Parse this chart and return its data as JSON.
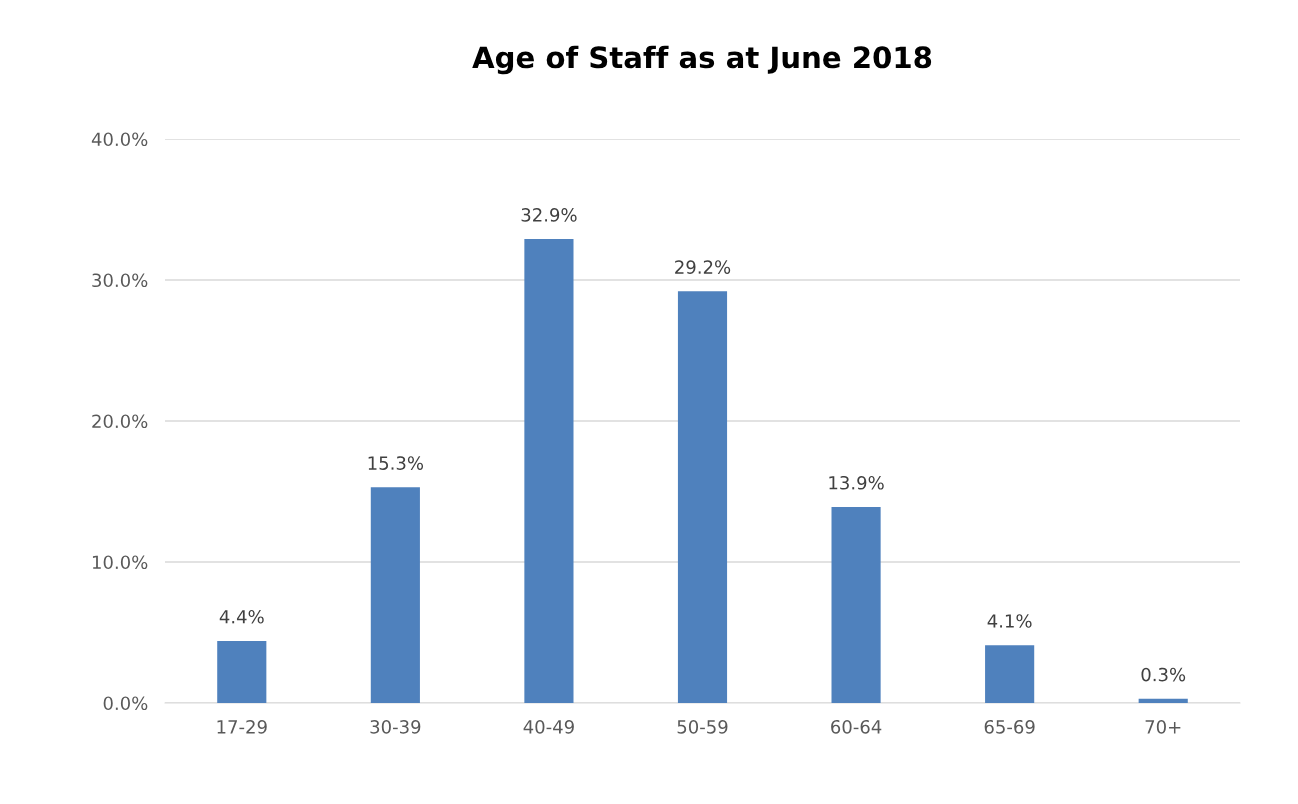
{
  "chart_data": {
    "type": "bar",
    "title": "Age of Staff as at June 2018",
    "categories": [
      "17-29",
      "30-39",
      "40-49",
      "50-59",
      "60-64",
      "65-69",
      "70+"
    ],
    "values": [
      4.4,
      15.3,
      32.9,
      29.2,
      13.9,
      4.1,
      0.3
    ],
    "value_labels": [
      "4.4%",
      "15.3%",
      "32.9%",
      "29.2%",
      "13.9%",
      "4.1%",
      "0.3%"
    ],
    "color": "#4f81bd",
    "ylim": [
      0,
      40
    ],
    "yticks": [
      {
        "value": 0,
        "label": "0.0%"
      },
      {
        "value": 10,
        "label": "10.0%"
      },
      {
        "value": 20,
        "label": "20.0%"
      },
      {
        "value": 30,
        "label": "30.0%"
      },
      {
        "value": 40,
        "label": "40.0%"
      }
    ],
    "grid": "y",
    "legend": false
  }
}
